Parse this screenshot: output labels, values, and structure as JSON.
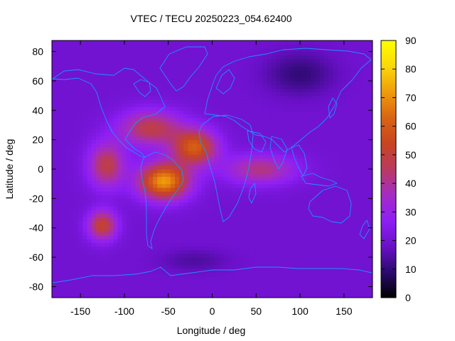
{
  "chart_data": {
    "type": "heatmap",
    "title": "VTEC / TECU 20250223_054.62400",
    "xlabel": "Longitude / deg",
    "ylabel": "Latitude / deg",
    "xlim": [
      -182.5,
      182.5
    ],
    "ylim": [
      -87.5,
      87.5
    ],
    "xticks": [
      -150,
      -100,
      -50,
      0,
      50,
      100,
      150
    ],
    "yticks": [
      -80,
      -60,
      -40,
      -20,
      0,
      20,
      40,
      60,
      80
    ],
    "colorbar": {
      "range": [
        0,
        90
      ],
      "ticks": [
        0,
        10,
        20,
        30,
        40,
        50,
        60,
        70,
        80,
        90
      ]
    },
    "grid_step": {
      "lon": 5,
      "lat": 2.5
    },
    "background_tecu": 20,
    "features": [
      {
        "name": "equatorial-crest-south",
        "lon": -55,
        "lat": -8,
        "lon_width": 28,
        "lat_width": 12,
        "tecu": 52
      },
      {
        "name": "equatorial-crest-north",
        "lon": -20,
        "lat": 15,
        "lon_width": 25,
        "lat_width": 12,
        "tecu": 40
      },
      {
        "name": "crest-west-extension",
        "lon": -120,
        "lat": 3,
        "lon_width": 20,
        "lat_width": 15,
        "tecu": 28
      },
      {
        "name": "crest-upper-band",
        "lon": -70,
        "lat": 28,
        "lon_width": 35,
        "lat_width": 12,
        "tecu": 28
      },
      {
        "name": "southern-lobe",
        "lon": -125,
        "lat": -38,
        "lon_width": 16,
        "lat_width": 10,
        "tecu": 32
      },
      {
        "name": "eastern-tongue",
        "lon": 55,
        "lat": 0,
        "lon_width": 40,
        "lat_width": 10,
        "tecu": 22
      },
      {
        "name": "arctic-minimum",
        "lon": 100,
        "lat": 65,
        "lon_width": 40,
        "lat_width": 15,
        "tecu": -10
      },
      {
        "name": "southern-minimum",
        "lon": -20,
        "lat": -62,
        "lon_width": 40,
        "lat_width": 8,
        "tecu": -6
      }
    ],
    "coastline_color": "#1e90ff",
    "colormap": [
      "#000000",
      "#2b0a6e",
      "#6a10c8",
      "#8e1ff5",
      "#a52cc4",
      "#b93a60",
      "#c84520",
      "#d96414",
      "#ef9c0a",
      "#fad80a",
      "#ffff00"
    ]
  }
}
